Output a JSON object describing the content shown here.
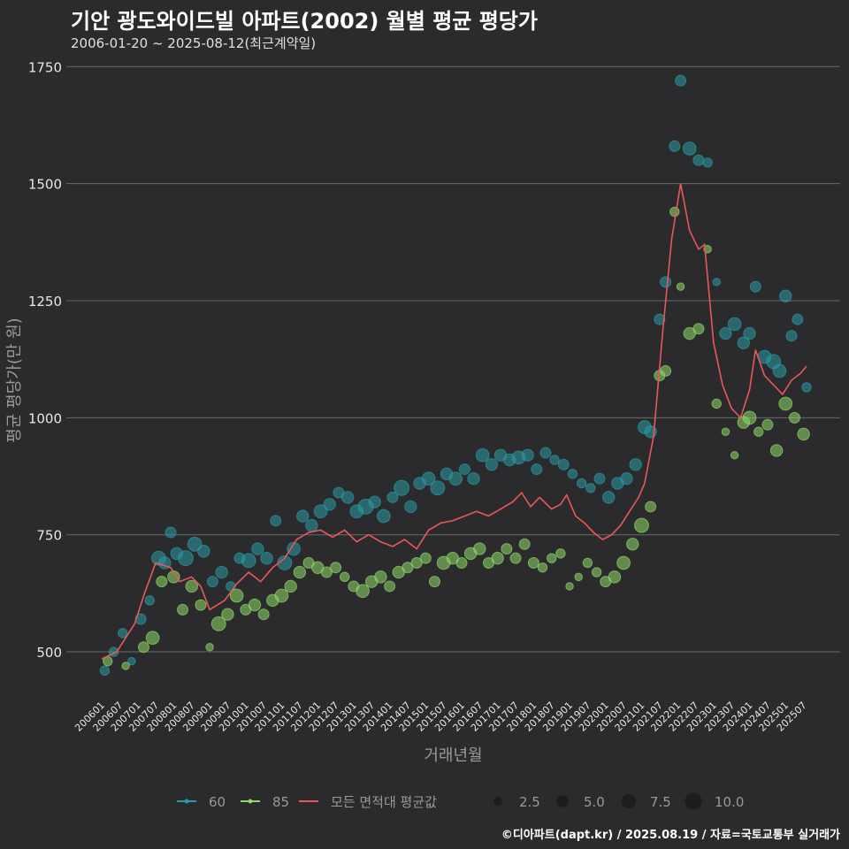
{
  "title": "기안 광도와이드빌 아파트(2002) 월별 평균 평당가",
  "subtitle": "2006-01-20 ~ 2025-08-12(최근계약일)",
  "credit": "©디아파트(dapt.kr) / 2025.08.19 / 자료=국토교통부 실거래가",
  "colors": {
    "background": "#2b2a2c",
    "s60": "#2a9aa4",
    "s85": "#90d86a",
    "avg": "#e8585c",
    "grid": "#6a6a6a"
  },
  "chart_data": {
    "type": "scatter",
    "xlabel": "거래년월",
    "ylabel": "평균 평당가(만 원)",
    "ylim": [
      400,
      1760
    ],
    "yticks": [
      500,
      750,
      1000,
      1250,
      1500,
      1750
    ],
    "xrange": [
      "2006-01",
      "2025-08"
    ],
    "xticks": [
      "200601",
      "200607",
      "200701",
      "200707",
      "200801",
      "200807",
      "200901",
      "200907",
      "201001",
      "201007",
      "201101",
      "201107",
      "201201",
      "201207",
      "201301",
      "201307",
      "201401",
      "201407",
      "201501",
      "201507",
      "201601",
      "201607",
      "201701",
      "201707",
      "201801",
      "201807",
      "201901",
      "201907",
      "202001",
      "202007",
      "202101",
      "202107",
      "202201",
      "202207",
      "202301",
      "202307",
      "202401",
      "202407",
      "202501",
      "202507"
    ],
    "legend": {
      "series": [
        {
          "key": "s60",
          "label": "60"
        },
        {
          "key": "s85",
          "label": "85"
        },
        {
          "key": "avg",
          "label": "모든 면적대 평균값"
        }
      ],
      "size_label": [
        "2.5",
        "5.0",
        "7.5",
        "10.0"
      ],
      "size_value": [
        2.5,
        5.0,
        7.5,
        10.0
      ]
    },
    "series": [
      {
        "name": "모든 면적대 평균값",
        "type": "line",
        "points": [
          [
            "2006-01",
            485
          ],
          [
            "2006-06",
            500
          ],
          [
            "2006-12",
            560
          ],
          [
            "2007-03",
            620
          ],
          [
            "2007-07",
            690
          ],
          [
            "2007-12",
            680
          ],
          [
            "2008-03",
            650
          ],
          [
            "2008-07",
            660
          ],
          [
            "2008-10",
            640
          ],
          [
            "2009-01",
            590
          ],
          [
            "2009-06",
            610
          ],
          [
            "2009-10",
            645
          ],
          [
            "2010-02",
            670
          ],
          [
            "2010-06",
            650
          ],
          [
            "2010-10",
            680
          ],
          [
            "2011-02",
            700
          ],
          [
            "2011-06",
            740
          ],
          [
            "2011-10",
            755
          ],
          [
            "2012-02",
            760
          ],
          [
            "2012-06",
            745
          ],
          [
            "2012-10",
            760
          ],
          [
            "2013-02",
            735
          ],
          [
            "2013-06",
            750
          ],
          [
            "2013-10",
            735
          ],
          [
            "2014-02",
            725
          ],
          [
            "2014-06",
            740
          ],
          [
            "2014-10",
            720
          ],
          [
            "2015-02",
            760
          ],
          [
            "2015-06",
            775
          ],
          [
            "2015-10",
            780
          ],
          [
            "2016-02",
            790
          ],
          [
            "2016-06",
            800
          ],
          [
            "2016-10",
            790
          ],
          [
            "2017-02",
            805
          ],
          [
            "2017-06",
            820
          ],
          [
            "2017-09",
            840
          ],
          [
            "2017-12",
            810
          ],
          [
            "2018-03",
            830
          ],
          [
            "2018-07",
            805
          ],
          [
            "2018-10",
            815
          ],
          [
            "2018-12",
            835
          ],
          [
            "2019-03",
            790
          ],
          [
            "2019-06",
            775
          ],
          [
            "2019-09",
            755
          ],
          [
            "2019-12",
            740
          ],
          [
            "2020-03",
            750
          ],
          [
            "2020-06",
            770
          ],
          [
            "2020-09",
            800
          ],
          [
            "2020-12",
            830
          ],
          [
            "2021-02",
            860
          ],
          [
            "2021-05",
            960
          ],
          [
            "2021-08",
            1180
          ],
          [
            "2021-11",
            1380
          ],
          [
            "2022-02",
            1500
          ],
          [
            "2022-05",
            1400
          ],
          [
            "2022-08",
            1360
          ],
          [
            "2022-10",
            1370
          ],
          [
            "2023-01",
            1160
          ],
          [
            "2023-04",
            1070
          ],
          [
            "2023-07",
            1020
          ],
          [
            "2023-10",
            1000
          ],
          [
            "2024-01",
            1060
          ],
          [
            "2024-03",
            1145
          ],
          [
            "2024-06",
            1090
          ],
          [
            "2024-09",
            1070
          ],
          [
            "2024-12",
            1050
          ],
          [
            "2025-03",
            1080
          ],
          [
            "2025-06",
            1095
          ],
          [
            "2025-08",
            1110
          ]
        ]
      },
      {
        "name": "60",
        "type": "scatter",
        "points": [
          [
            "2006-02",
            460,
            3
          ],
          [
            "2006-05",
            500,
            3
          ],
          [
            "2006-08",
            540,
            3
          ],
          [
            "2006-11",
            480,
            2
          ],
          [
            "2007-02",
            570,
            4
          ],
          [
            "2007-05",
            610,
            3
          ],
          [
            "2007-08",
            700,
            7
          ],
          [
            "2007-10",
            690,
            5
          ],
          [
            "2007-12",
            755,
            4
          ],
          [
            "2008-02",
            710,
            5
          ],
          [
            "2008-05",
            700,
            8
          ],
          [
            "2008-08",
            730,
            7
          ],
          [
            "2008-11",
            715,
            5
          ],
          [
            "2009-02",
            650,
            4
          ],
          [
            "2009-05",
            670,
            5
          ],
          [
            "2009-08",
            640,
            3
          ],
          [
            "2009-11",
            700,
            4
          ],
          [
            "2010-02",
            695,
            7
          ],
          [
            "2010-05",
            720,
            5
          ],
          [
            "2010-08",
            700,
            5
          ],
          [
            "2010-11",
            780,
            4
          ],
          [
            "2011-02",
            690,
            7
          ],
          [
            "2011-05",
            720,
            6
          ],
          [
            "2011-08",
            790,
            5
          ],
          [
            "2011-11",
            770,
            5
          ],
          [
            "2012-02",
            800,
            6
          ],
          [
            "2012-05",
            815,
            5
          ],
          [
            "2012-08",
            840,
            4
          ],
          [
            "2012-11",
            830,
            5
          ],
          [
            "2013-02",
            800,
            6
          ],
          [
            "2013-05",
            810,
            8
          ],
          [
            "2013-08",
            820,
            5
          ],
          [
            "2013-11",
            790,
            6
          ],
          [
            "2014-02",
            830,
            4
          ],
          [
            "2014-05",
            850,
            8
          ],
          [
            "2014-08",
            810,
            5
          ],
          [
            "2014-11",
            860,
            5
          ],
          [
            "2015-02",
            870,
            6
          ],
          [
            "2015-05",
            850,
            7
          ],
          [
            "2015-08",
            880,
            5
          ],
          [
            "2015-11",
            870,
            6
          ],
          [
            "2016-02",
            890,
            4
          ],
          [
            "2016-05",
            870,
            5
          ],
          [
            "2016-08",
            920,
            6
          ],
          [
            "2016-11",
            900,
            5
          ],
          [
            "2017-02",
            920,
            5
          ],
          [
            "2017-05",
            910,
            5
          ],
          [
            "2017-08",
            915,
            6
          ],
          [
            "2017-11",
            920,
            5
          ],
          [
            "2018-02",
            890,
            4
          ],
          [
            "2018-05",
            925,
            4
          ],
          [
            "2018-08",
            910,
            3
          ],
          [
            "2018-11",
            900,
            4
          ],
          [
            "2019-02",
            880,
            3
          ],
          [
            "2019-05",
            860,
            3
          ],
          [
            "2019-08",
            850,
            3
          ],
          [
            "2019-11",
            870,
            4
          ],
          [
            "2020-02",
            830,
            5
          ],
          [
            "2020-05",
            860,
            5
          ],
          [
            "2020-08",
            870,
            5
          ],
          [
            "2020-11",
            900,
            5
          ],
          [
            "2021-02",
            980,
            6
          ],
          [
            "2021-04",
            970,
            5
          ],
          [
            "2021-07",
            1210,
            4
          ],
          [
            "2021-09",
            1290,
            4
          ],
          [
            "2021-12",
            1580,
            4
          ],
          [
            "2022-02",
            1720,
            4
          ],
          [
            "2022-05",
            1575,
            6
          ],
          [
            "2022-08",
            1550,
            4
          ],
          [
            "2022-11",
            1545,
            3
          ],
          [
            "2023-02",
            1290,
            2
          ],
          [
            "2023-05",
            1180,
            5
          ],
          [
            "2023-08",
            1200,
            6
          ],
          [
            "2023-11",
            1160,
            5
          ],
          [
            "2024-01",
            1180,
            5
          ],
          [
            "2024-03",
            1280,
            4
          ],
          [
            "2024-06",
            1130,
            6
          ],
          [
            "2024-09",
            1120,
            7
          ],
          [
            "2024-11",
            1100,
            6
          ],
          [
            "2025-01",
            1260,
            5
          ],
          [
            "2025-03",
            1175,
            4
          ],
          [
            "2025-05",
            1210,
            4
          ],
          [
            "2025-08",
            1065,
            3
          ]
        ]
      },
      {
        "name": "85",
        "type": "scatter",
        "points": [
          [
            "2006-03",
            480,
            3
          ],
          [
            "2006-09",
            470,
            2
          ],
          [
            "2007-03",
            510,
            4
          ],
          [
            "2007-06",
            530,
            6
          ],
          [
            "2007-09",
            650,
            4
          ],
          [
            "2008-01",
            660,
            5
          ],
          [
            "2008-04",
            590,
            4
          ],
          [
            "2008-07",
            640,
            5
          ],
          [
            "2008-10",
            600,
            4
          ],
          [
            "2009-01",
            510,
            2
          ],
          [
            "2009-04",
            560,
            7
          ],
          [
            "2009-07",
            580,
            5
          ],
          [
            "2009-10",
            620,
            6
          ],
          [
            "2010-01",
            590,
            4
          ],
          [
            "2010-04",
            600,
            5
          ],
          [
            "2010-07",
            580,
            4
          ],
          [
            "2010-10",
            610,
            5
          ],
          [
            "2011-01",
            620,
            6
          ],
          [
            "2011-04",
            640,
            5
          ],
          [
            "2011-07",
            670,
            5
          ],
          [
            "2011-10",
            690,
            4
          ],
          [
            "2012-01",
            680,
            5
          ],
          [
            "2012-04",
            670,
            4
          ],
          [
            "2012-07",
            680,
            4
          ],
          [
            "2012-10",
            660,
            3
          ],
          [
            "2013-01",
            640,
            4
          ],
          [
            "2013-04",
            630,
            6
          ],
          [
            "2013-07",
            650,
            5
          ],
          [
            "2013-10",
            660,
            5
          ],
          [
            "2014-01",
            640,
            4
          ],
          [
            "2014-04",
            670,
            5
          ],
          [
            "2014-07",
            680,
            4
          ],
          [
            "2014-10",
            690,
            4
          ],
          [
            "2015-01",
            700,
            4
          ],
          [
            "2015-04",
            650,
            4
          ],
          [
            "2015-07",
            690,
            6
          ],
          [
            "2015-10",
            700,
            5
          ],
          [
            "2016-01",
            690,
            4
          ],
          [
            "2016-04",
            710,
            5
          ],
          [
            "2016-07",
            720,
            5
          ],
          [
            "2016-10",
            690,
            4
          ],
          [
            "2017-01",
            700,
            5
          ],
          [
            "2017-04",
            720,
            4
          ],
          [
            "2017-07",
            700,
            4
          ],
          [
            "2017-10",
            730,
            4
          ],
          [
            "2018-01",
            690,
            4
          ],
          [
            "2018-04",
            680,
            3
          ],
          [
            "2018-07",
            700,
            3
          ],
          [
            "2018-10",
            710,
            3
          ],
          [
            "2019-01",
            640,
            2
          ],
          [
            "2019-04",
            660,
            2
          ],
          [
            "2019-07",
            690,
            3
          ],
          [
            "2019-10",
            670,
            3
          ],
          [
            "2020-01",
            650,
            4
          ],
          [
            "2020-04",
            660,
            5
          ],
          [
            "2020-07",
            690,
            6
          ],
          [
            "2020-10",
            730,
            5
          ],
          [
            "2021-01",
            770,
            7
          ],
          [
            "2021-04",
            810,
            4
          ],
          [
            "2021-07",
            1090,
            4
          ],
          [
            "2021-09",
            1100,
            4
          ],
          [
            "2021-12",
            1440,
            3
          ],
          [
            "2022-02",
            1280,
            2
          ],
          [
            "2022-05",
            1180,
            5
          ],
          [
            "2022-08",
            1190,
            4
          ],
          [
            "2022-11",
            1360,
            2
          ],
          [
            "2023-02",
            1030,
            3
          ],
          [
            "2023-05",
            970,
            2
          ],
          [
            "2023-08",
            920,
            2
          ],
          [
            "2023-11",
            990,
            5
          ],
          [
            "2024-01",
            1000,
            6
          ],
          [
            "2024-04",
            970,
            3
          ],
          [
            "2024-07",
            985,
            4
          ],
          [
            "2024-10",
            930,
            5
          ],
          [
            "2025-01",
            1030,
            6
          ],
          [
            "2025-04",
            1000,
            4
          ],
          [
            "2025-07",
            965,
            5
          ]
        ]
      }
    ]
  }
}
